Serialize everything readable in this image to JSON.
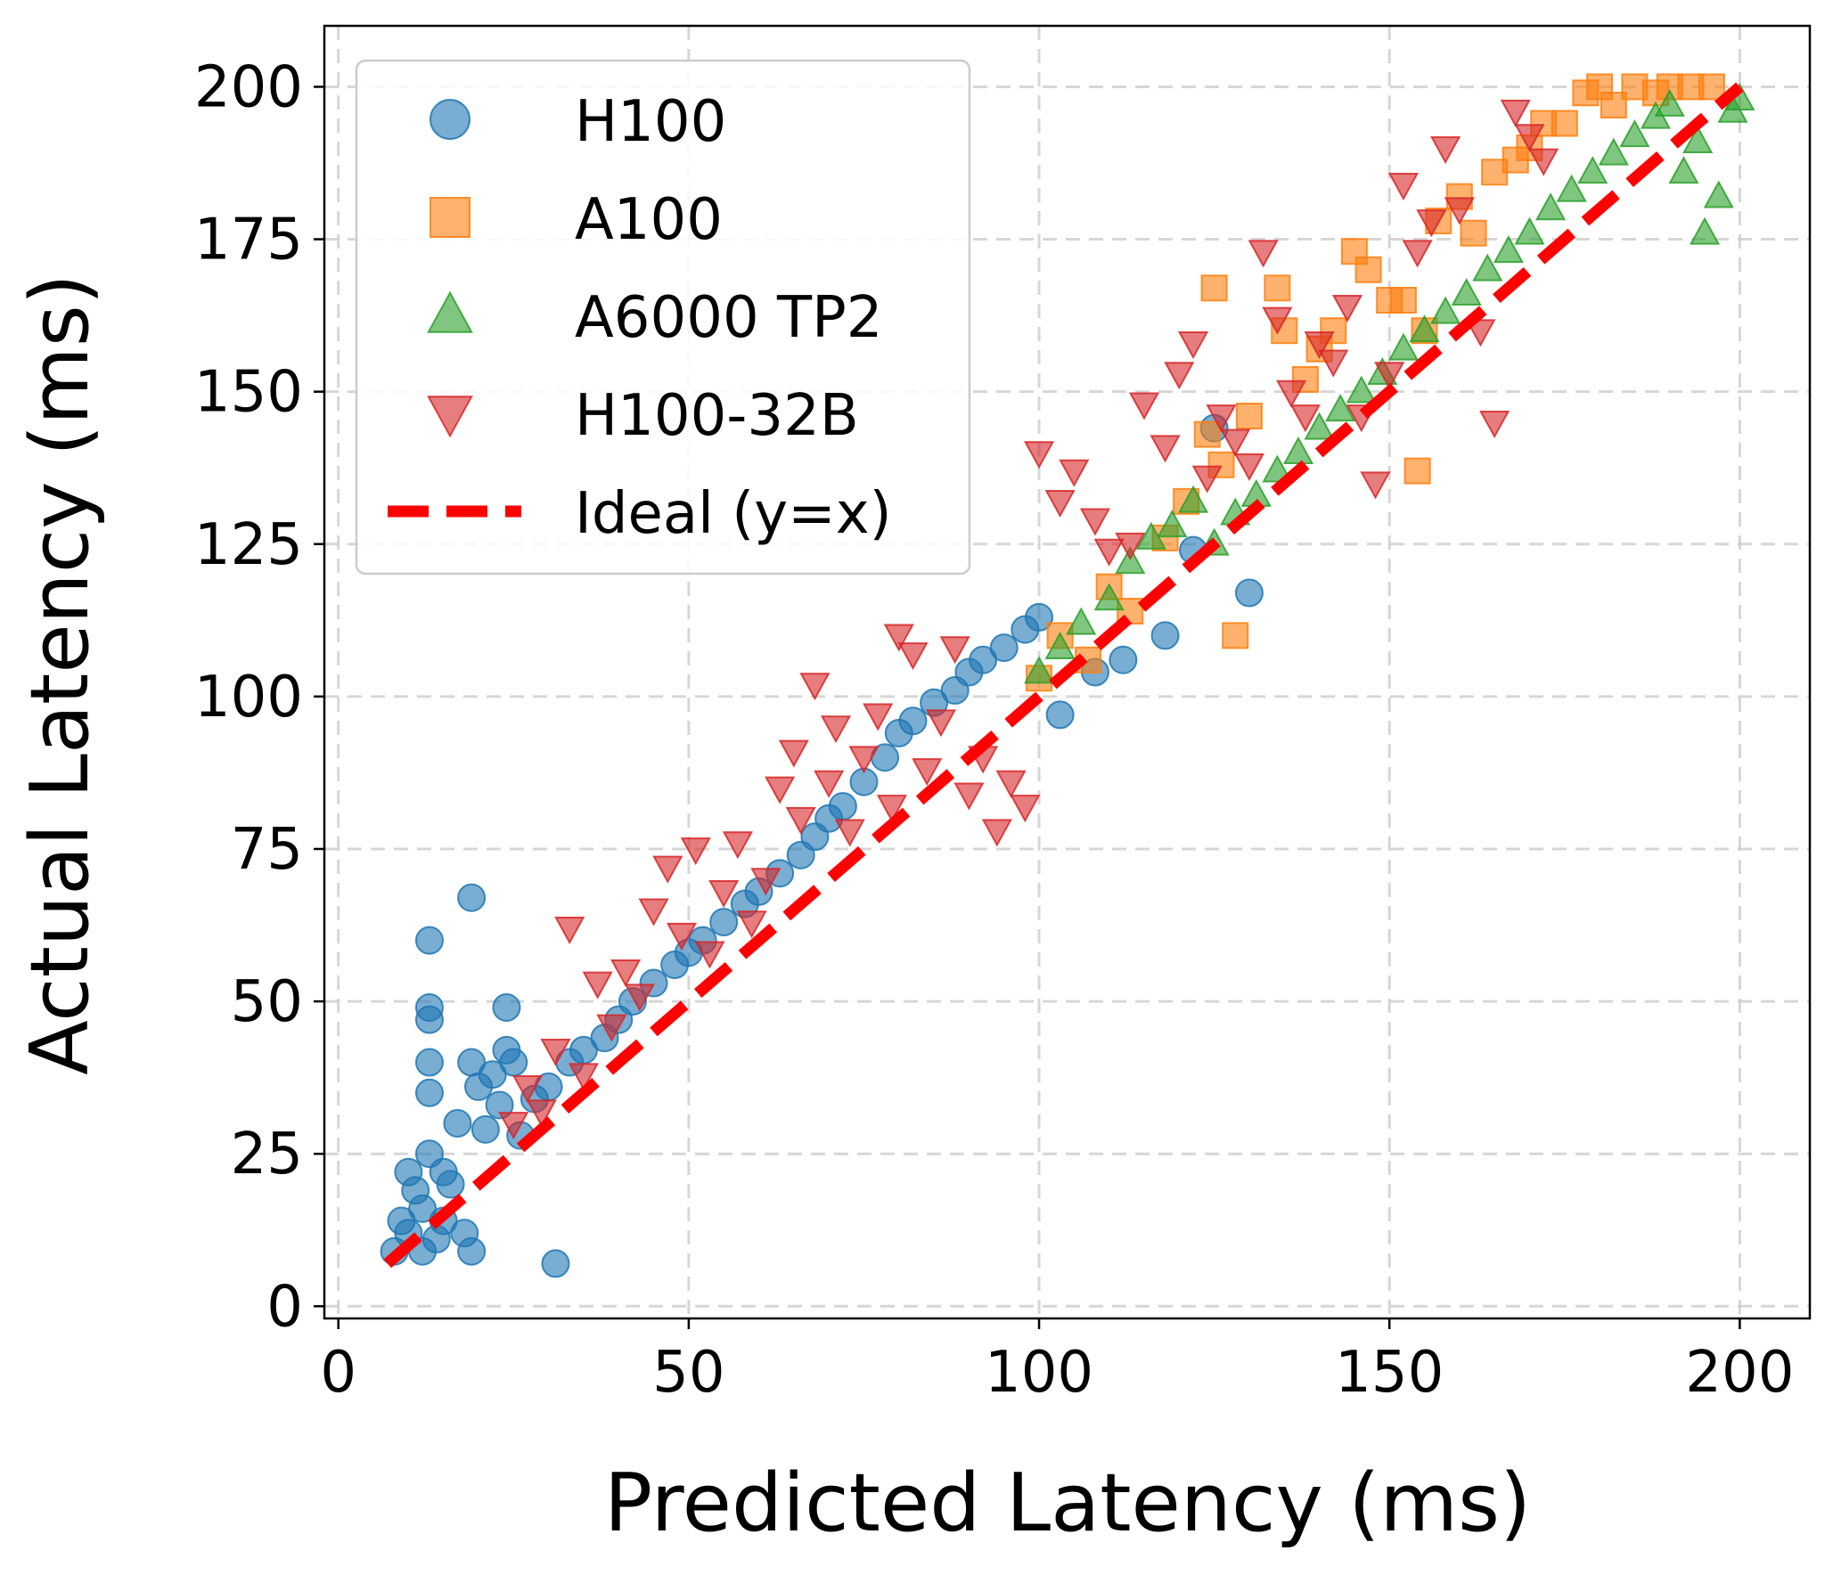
{
  "chart_data": {
    "type": "scatter",
    "title": "",
    "xlabel": "Predicted Latency (ms)",
    "ylabel": "Actual Latency (ms)",
    "xlim": [
      -2,
      210
    ],
    "ylim": [
      -2,
      210
    ],
    "xticks": [
      0,
      50,
      100,
      150,
      200
    ],
    "yticks": [
      0,
      25,
      50,
      75,
      100,
      125,
      150,
      175,
      200
    ],
    "xtick_labels": [
      "0",
      "50",
      "100",
      "150",
      "200"
    ],
    "ytick_labels": [
      "0",
      "25",
      "50",
      "75",
      "100",
      "125",
      "150",
      "175",
      "200"
    ],
    "grid": true,
    "legend_position": "top-left",
    "series": [
      {
        "name": "H100",
        "marker": "circle",
        "color": "#1f77b4",
        "points": [
          [
            8,
            9
          ],
          [
            9,
            14
          ],
          [
            10,
            22
          ],
          [
            10,
            12
          ],
          [
            11,
            19
          ],
          [
            12,
            9
          ],
          [
            12,
            16
          ],
          [
            13,
            25
          ],
          [
            13,
            60
          ],
          [
            13,
            49
          ],
          [
            13,
            40
          ],
          [
            13,
            35
          ],
          [
            13,
            47
          ],
          [
            14,
            11
          ],
          [
            15,
            22
          ],
          [
            15,
            14
          ],
          [
            16,
            20
          ],
          [
            17,
            30
          ],
          [
            18,
            12
          ],
          [
            19,
            67
          ],
          [
            19,
            40
          ],
          [
            19,
            9
          ],
          [
            20,
            36
          ],
          [
            21,
            29
          ],
          [
            22,
            38
          ],
          [
            23,
            33
          ],
          [
            24,
            49
          ],
          [
            24,
            42
          ],
          [
            25,
            40
          ],
          [
            26,
            28
          ],
          [
            28,
            34
          ],
          [
            30,
            36
          ],
          [
            31,
            7
          ],
          [
            33,
            40
          ],
          [
            35,
            42
          ],
          [
            38,
            44
          ],
          [
            40,
            47
          ],
          [
            42,
            50
          ],
          [
            45,
            53
          ],
          [
            48,
            56
          ],
          [
            50,
            58
          ],
          [
            52,
            60
          ],
          [
            55,
            63
          ],
          [
            58,
            66
          ],
          [
            60,
            68
          ],
          [
            63,
            71
          ],
          [
            66,
            74
          ],
          [
            68,
            77
          ],
          [
            70,
            80
          ],
          [
            72,
            82
          ],
          [
            75,
            86
          ],
          [
            78,
            90
          ],
          [
            80,
            94
          ],
          [
            82,
            96
          ],
          [
            85,
            99
          ],
          [
            88,
            101
          ],
          [
            90,
            104
          ],
          [
            92,
            106
          ],
          [
            95,
            108
          ],
          [
            98,
            111
          ],
          [
            100,
            113
          ],
          [
            103,
            97
          ],
          [
            108,
            104
          ],
          [
            112,
            106
          ],
          [
            118,
            110
          ],
          [
            122,
            124
          ],
          [
            125,
            144
          ],
          [
            130,
            117
          ]
        ]
      },
      {
        "name": "A100",
        "marker": "square",
        "color": "#ff7f0e",
        "points": [
          [
            100,
            103
          ],
          [
            103,
            110
          ],
          [
            107,
            106
          ],
          [
            110,
            118
          ],
          [
            113,
            114
          ],
          [
            118,
            126
          ],
          [
            121,
            132
          ],
          [
            124,
            143
          ],
          [
            125,
            167
          ],
          [
            126,
            138
          ],
          [
            128,
            110
          ],
          [
            130,
            146
          ],
          [
            134,
            167
          ],
          [
            135,
            160
          ],
          [
            138,
            152
          ],
          [
            140,
            157
          ],
          [
            142,
            160
          ],
          [
            145,
            173
          ],
          [
            147,
            170
          ],
          [
            150,
            165
          ],
          [
            152,
            165
          ],
          [
            154,
            137
          ],
          [
            155,
            160
          ],
          [
            157,
            178
          ],
          [
            160,
            182
          ],
          [
            162,
            176
          ],
          [
            165,
            186
          ],
          [
            168,
            188
          ],
          [
            170,
            190
          ],
          [
            172,
            194
          ],
          [
            175,
            194
          ],
          [
            178,
            199
          ],
          [
            180,
            200
          ],
          [
            182,
            197
          ],
          [
            185,
            200
          ],
          [
            188,
            199
          ],
          [
            190,
            200
          ],
          [
            193,
            200
          ],
          [
            196,
            200
          ]
        ]
      },
      {
        "name": "A6000 TP2",
        "marker": "triangle-up",
        "color": "#2ca02c",
        "points": [
          [
            100,
            104
          ],
          [
            103,
            108
          ],
          [
            106,
            112
          ],
          [
            110,
            116
          ],
          [
            113,
            122
          ],
          [
            116,
            126
          ],
          [
            119,
            128
          ],
          [
            122,
            132
          ],
          [
            125,
            125
          ],
          [
            128,
            130
          ],
          [
            131,
            133
          ],
          [
            134,
            137
          ],
          [
            137,
            140
          ],
          [
            140,
            144
          ],
          [
            143,
            147
          ],
          [
            146,
            150
          ],
          [
            149,
            153
          ],
          [
            152,
            157
          ],
          [
            155,
            160
          ],
          [
            158,
            163
          ],
          [
            161,
            166
          ],
          [
            164,
            170
          ],
          [
            167,
            173
          ],
          [
            170,
            176
          ],
          [
            173,
            180
          ],
          [
            176,
            183
          ],
          [
            179,
            186
          ],
          [
            182,
            189
          ],
          [
            185,
            192
          ],
          [
            188,
            195
          ],
          [
            190,
            197
          ],
          [
            192,
            186
          ],
          [
            194,
            191
          ],
          [
            195,
            176
          ],
          [
            197,
            182
          ],
          [
            199,
            196
          ],
          [
            200,
            198
          ]
        ]
      },
      {
        "name": "H100-32B",
        "marker": "triangle-down",
        "color": "#d62728",
        "points": [
          [
            25,
            30
          ],
          [
            27,
            36
          ],
          [
            29,
            32
          ],
          [
            31,
            42
          ],
          [
            33,
            62
          ],
          [
            35,
            38
          ],
          [
            37,
            53
          ],
          [
            39,
            46
          ],
          [
            41,
            55
          ],
          [
            43,
            51
          ],
          [
            45,
            65
          ],
          [
            47,
            72
          ],
          [
            49,
            61
          ],
          [
            51,
            75
          ],
          [
            53,
            58
          ],
          [
            55,
            68
          ],
          [
            57,
            76
          ],
          [
            59,
            63
          ],
          [
            61,
            70
          ],
          [
            63,
            85
          ],
          [
            65,
            91
          ],
          [
            66,
            80
          ],
          [
            68,
            102
          ],
          [
            70,
            86
          ],
          [
            71,
            95
          ],
          [
            73,
            78
          ],
          [
            75,
            90
          ],
          [
            77,
            97
          ],
          [
            79,
            82
          ],
          [
            80,
            110
          ],
          [
            82,
            107
          ],
          [
            84,
            88
          ],
          [
            86,
            96
          ],
          [
            88,
            108
          ],
          [
            90,
            84
          ],
          [
            92,
            90
          ],
          [
            94,
            78
          ],
          [
            96,
            86
          ],
          [
            98,
            82
          ],
          [
            100,
            140
          ],
          [
            103,
            132
          ],
          [
            105,
            137
          ],
          [
            108,
            129
          ],
          [
            110,
            124
          ],
          [
            113,
            125
          ],
          [
            115,
            148
          ],
          [
            118,
            141
          ],
          [
            120,
            153
          ],
          [
            122,
            158
          ],
          [
            124,
            136
          ],
          [
            126,
            146
          ],
          [
            128,
            142
          ],
          [
            130,
            138
          ],
          [
            132,
            173
          ],
          [
            134,
            162
          ],
          [
            136,
            150
          ],
          [
            138,
            146
          ],
          [
            140,
            158
          ],
          [
            142,
            155
          ],
          [
            144,
            164
          ],
          [
            146,
            146
          ],
          [
            148,
            135
          ],
          [
            150,
            153
          ],
          [
            152,
            184
          ],
          [
            154,
            173
          ],
          [
            156,
            178
          ],
          [
            158,
            190
          ],
          [
            160,
            180
          ],
          [
            163,
            160
          ],
          [
            165,
            145
          ],
          [
            168,
            196
          ],
          [
            170,
            192
          ],
          [
            172,
            188
          ]
        ]
      },
      {
        "name": "Ideal (y=x)",
        "type": "line",
        "style": "dashed",
        "color": "#ff0000",
        "points": [
          [
            7,
            7
          ],
          [
            200,
            200
          ]
        ]
      }
    ]
  }
}
